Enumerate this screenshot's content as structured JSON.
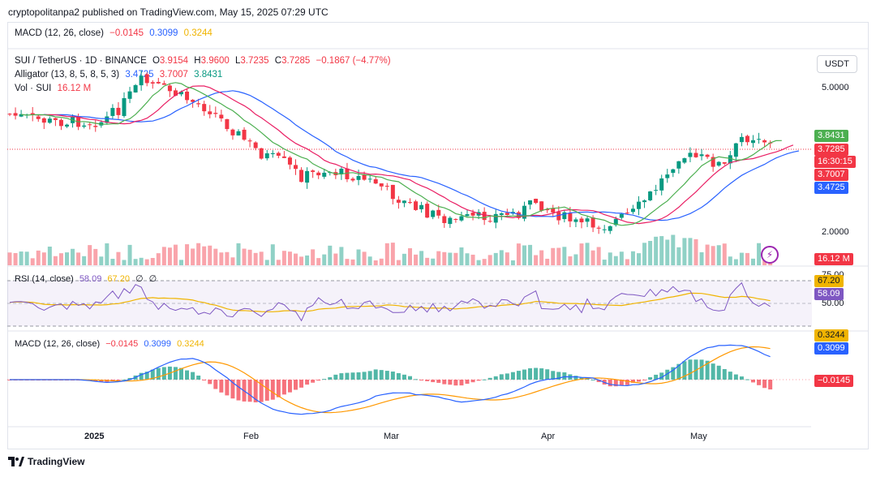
{
  "published": "cryptopolitanpa2 published on TradingView.com, May 15, 2025 07:29 UTC",
  "top_macd": {
    "label": "MACD (12, 26, close)",
    "hist": "−0.0145",
    "macd": "0.3099",
    "signal": "0.3244"
  },
  "symbol": {
    "name": "SUI / TetherUS · 1D · BINANCE",
    "o_label": "O",
    "o": "3.9154",
    "h_label": "H",
    "h": "3.9600",
    "l_label": "L",
    "l": "3.7235",
    "c_label": "C",
    "c": "3.7285",
    "change": "−0.1867 (−4.77%)"
  },
  "alligator": {
    "label": "Alligator (13, 8, 5, 8, 5, 3)",
    "jaw": "3.4725",
    "teeth": "3.7007",
    "lips": "3.8431"
  },
  "volume": {
    "label": "Vol · SUI",
    "value": "16.12 M"
  },
  "currency": "USDT",
  "price_axis": [
    "5.0000",
    "2.0000"
  ],
  "badges": {
    "lips": "3.8431",
    "last": "3.7285",
    "countdown": "16:30:15",
    "teeth": "3.7007",
    "jaw": "3.4725",
    "volume": "16.12 M"
  },
  "rsi": {
    "label": "RSI (14, close)",
    "value": "58.09",
    "ma": "67.20",
    "extra1": "∅",
    "extra2": "∅",
    "axis": [
      "75.00",
      "50.00"
    ],
    "badge_ma": "67.20",
    "badge_value": "58.09"
  },
  "macd": {
    "label": "MACD (12, 26, close)",
    "hist": "−0.0145",
    "macd": "0.3099",
    "signal": "0.3244",
    "badge_signal": "0.3244",
    "badge_macd": "0.3099",
    "badge_hist": "−0.0145"
  },
  "time_axis": [
    {
      "label": "2025",
      "bold": true
    },
    {
      "label": "Feb",
      "bold": false
    },
    {
      "label": "Mar",
      "bold": false
    },
    {
      "label": "Apr",
      "bold": false
    },
    {
      "label": "May",
      "bold": false
    }
  ],
  "brand": "TradingView",
  "colors": {
    "up": "#089981",
    "down": "#f23645",
    "jaw": "#2962ff",
    "teeth": "#e91e63",
    "lips": "#4caf50",
    "rsi": "#7e57c2",
    "rsi_ma": "#f0b400",
    "macd": "#2962ff",
    "signal": "#ff9800"
  }
}
